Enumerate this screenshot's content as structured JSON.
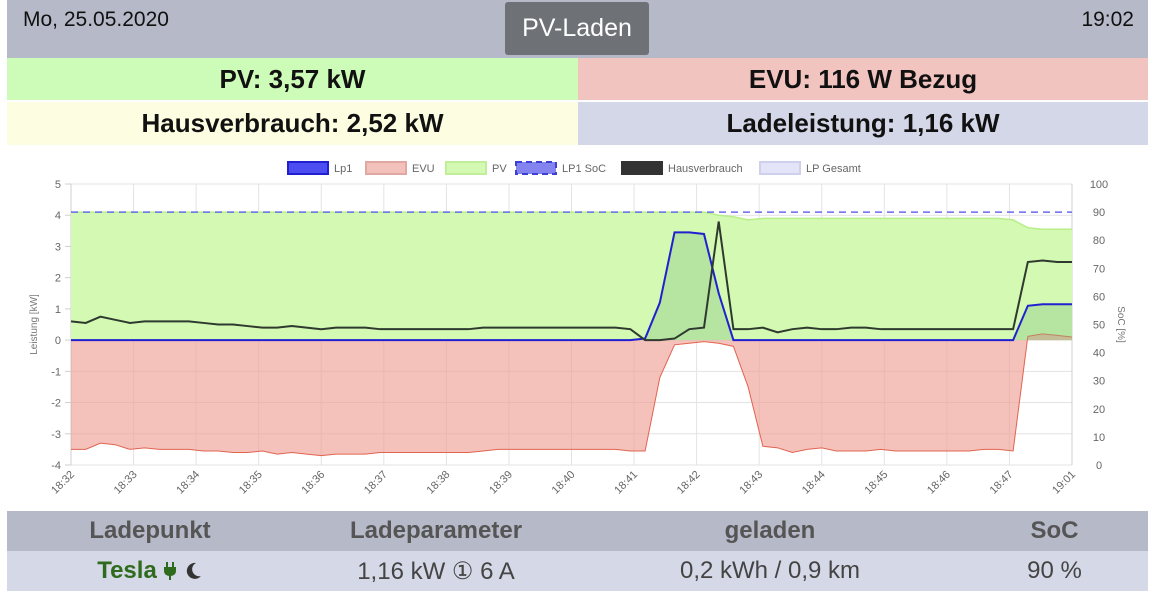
{
  "header": {
    "date": "Mo, 25.05.2020",
    "title": "PV-Laden",
    "time": "19:02"
  },
  "tiles": {
    "pv": "PV: 3,57 kW",
    "evu": "EVU: 116 W Bezug",
    "hausverbrauch": "Hausverbrauch: 2,52 kW",
    "ladeleistung": "Ladeleistung: 1,16 kW"
  },
  "colors": {
    "pv": "#c9f7a8",
    "evu": "#f3c1bb",
    "lp1": "#2020d0",
    "soc": "#6a6aee",
    "haus": "#333333",
    "header_bg": "#b6b9c8",
    "tesla_green": "#2e6b1d"
  },
  "chart_data": {
    "type": "line",
    "legend_position": "top",
    "legend": [
      "Lp1",
      "EVU",
      "PV",
      "LP1 SoC",
      "Hausverbrauch",
      "LP Gesamt"
    ],
    "ylabel": "Leistung [kW]",
    "y2label": "SoC [%]",
    "ylim": [
      -4,
      5
    ],
    "y2lim": [
      0,
      100
    ],
    "yticks": [
      "5",
      "4",
      "3",
      "2",
      "1",
      "0",
      "-1",
      "-2",
      "-3",
      "-4"
    ],
    "y2ticks": [
      "100",
      "90",
      "80",
      "70",
      "60",
      "50",
      "40",
      "30",
      "20",
      "10",
      "0"
    ],
    "grid": true,
    "x_labels": [
      "18:32",
      "18:33",
      "18:34",
      "18:35",
      "18:36",
      "18:37",
      "18:38",
      "18:39",
      "18:40",
      "18:41",
      "18:42",
      "18:43",
      "18:44",
      "18:45",
      "18:46",
      "18:47",
      "19:01"
    ],
    "series": [
      {
        "name": "PV",
        "y": [
          4.1,
          4.1,
          4.1,
          4.1,
          4.1,
          4.1,
          4.1,
          4.1,
          4.1,
          4.1,
          4.1,
          4.1,
          4.1,
          4.1,
          4.1,
          4.1,
          4.1,
          4.1,
          4.1,
          4.1,
          4.1,
          4.1,
          4.1,
          4.1,
          4.1,
          4.1,
          4.1,
          4.1,
          4.1,
          4.1,
          4.1,
          4.1,
          4.1,
          4.1,
          4.1,
          4.1,
          4.1,
          4.1,
          4.1,
          4.1,
          4.1,
          4.1,
          4.1,
          4.1,
          4.0,
          3.95,
          3.85,
          3.9,
          3.9,
          3.9,
          3.9,
          3.9,
          3.9,
          3.9,
          3.9,
          3.9,
          3.9,
          3.9,
          3.9,
          3.9,
          3.9,
          3.9,
          3.9,
          3.9,
          3.85,
          3.6,
          3.55,
          3.55,
          3.55
        ]
      },
      {
        "name": "EVU",
        "y": [
          -3.5,
          -3.5,
          -3.3,
          -3.35,
          -3.5,
          -3.45,
          -3.5,
          -3.5,
          -3.5,
          -3.55,
          -3.55,
          -3.6,
          -3.6,
          -3.55,
          -3.65,
          -3.6,
          -3.65,
          -3.7,
          -3.65,
          -3.65,
          -3.65,
          -3.6,
          -3.6,
          -3.6,
          -3.6,
          -3.6,
          -3.6,
          -3.6,
          -3.55,
          -3.5,
          -3.5,
          -3.5,
          -3.5,
          -3.5,
          -3.5,
          -3.5,
          -3.5,
          -3.5,
          -3.55,
          -3.55,
          -1.2,
          -0.15,
          -0.1,
          -0.05,
          -0.1,
          -0.2,
          -1.5,
          -3.4,
          -3.45,
          -3.6,
          -3.5,
          -3.45,
          -3.55,
          -3.55,
          -3.55,
          -3.5,
          -3.55,
          -3.55,
          -3.55,
          -3.55,
          -3.55,
          -3.55,
          -3.5,
          -3.5,
          -3.55,
          0.12,
          0.2,
          0.15,
          0.1
        ]
      },
      {
        "name": "Lp1",
        "y": [
          0,
          0,
          0,
          0,
          0,
          0,
          0,
          0,
          0,
          0,
          0,
          0,
          0,
          0,
          0,
          0,
          0,
          0,
          0,
          0,
          0,
          0,
          0,
          0,
          0,
          0,
          0,
          0,
          0,
          0,
          0,
          0,
          0,
          0,
          0,
          0,
          0,
          0,
          0,
          0.05,
          1.2,
          3.45,
          3.45,
          3.4,
          1.5,
          0,
          0,
          0,
          0,
          0,
          0,
          0,
          0,
          0,
          0,
          0,
          0,
          0,
          0,
          0,
          0,
          0,
          0,
          0,
          0,
          1.1,
          1.15,
          1.15,
          1.15
        ]
      },
      {
        "name": "Hausverbrauch",
        "y": [
          0.6,
          0.55,
          0.75,
          0.65,
          0.55,
          0.6,
          0.6,
          0.6,
          0.6,
          0.55,
          0.5,
          0.5,
          0.45,
          0.4,
          0.4,
          0.45,
          0.4,
          0.35,
          0.4,
          0.4,
          0.4,
          0.35,
          0.35,
          0.35,
          0.35,
          0.35,
          0.35,
          0.35,
          0.4,
          0.4,
          0.4,
          0.4,
          0.4,
          0.4,
          0.4,
          0.4,
          0.4,
          0.4,
          0.35,
          0.0,
          0.0,
          0.05,
          0.35,
          0.4,
          3.8,
          0.35,
          0.35,
          0.4,
          0.25,
          0.35,
          0.4,
          0.35,
          0.35,
          0.4,
          0.4,
          0.35,
          0.35,
          0.35,
          0.35,
          0.35,
          0.35,
          0.35,
          0.35,
          0.35,
          0.35,
          2.5,
          2.55,
          2.5,
          2.5
        ]
      },
      {
        "name": "LP1 SoC",
        "y2": 90
      }
    ]
  },
  "table": {
    "headers": [
      "Ladepunkt",
      "Ladeparameter",
      "geladen",
      "SoC"
    ],
    "row": {
      "name": "Tesla",
      "plug_icon": "plug-icon",
      "mode_icon": "moon-icon",
      "params": "1,16 kW ① 6 A",
      "geladen": "0,2 kWh / 0,9 km",
      "soc": "90 %"
    }
  }
}
